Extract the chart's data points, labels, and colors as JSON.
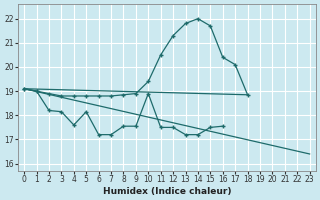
{
  "title": "",
  "xlabel": "Humidex (Indice chaleur)",
  "ylabel": "",
  "bg_color": "#cce9f0",
  "grid_color": "#ffffff",
  "line_color": "#1e6b6b",
  "xlim": [
    -0.5,
    23.5
  ],
  "ylim": [
    15.7,
    22.6
  ],
  "yticks": [
    16,
    17,
    18,
    19,
    20,
    21,
    22
  ],
  "xticks": [
    0,
    1,
    2,
    3,
    4,
    5,
    6,
    7,
    8,
    9,
    10,
    11,
    12,
    13,
    14,
    15,
    16,
    17,
    18,
    19,
    20,
    21,
    22,
    23
  ],
  "lines": [
    {
      "x": [
        0,
        1,
        2,
        3,
        4,
        5,
        6,
        7,
        8,
        9,
        10,
        11,
        12,
        13,
        14,
        15,
        16,
        17,
        18
      ],
      "y": [
        19.1,
        19.0,
        18.9,
        18.8,
        18.8,
        18.8,
        18.8,
        18.8,
        18.85,
        18.9,
        19.4,
        20.5,
        21.3,
        21.8,
        22.0,
        21.7,
        20.4,
        20.1,
        18.85
      ]
    },
    {
      "x": [
        0,
        1,
        2,
        3,
        4,
        5,
        6,
        7,
        8,
        9,
        10,
        11,
        12,
        13,
        14,
        15,
        16
      ],
      "y": [
        19.1,
        19.0,
        18.2,
        18.15,
        17.6,
        18.15,
        17.2,
        17.2,
        17.55,
        17.55,
        18.9,
        17.5,
        17.5,
        17.2,
        17.2,
        17.5,
        17.55
      ]
    },
    {
      "x": [
        0,
        23
      ],
      "y": [
        19.1,
        16.4
      ]
    },
    {
      "x": [
        0,
        18
      ],
      "y": [
        19.1,
        18.85
      ]
    }
  ]
}
